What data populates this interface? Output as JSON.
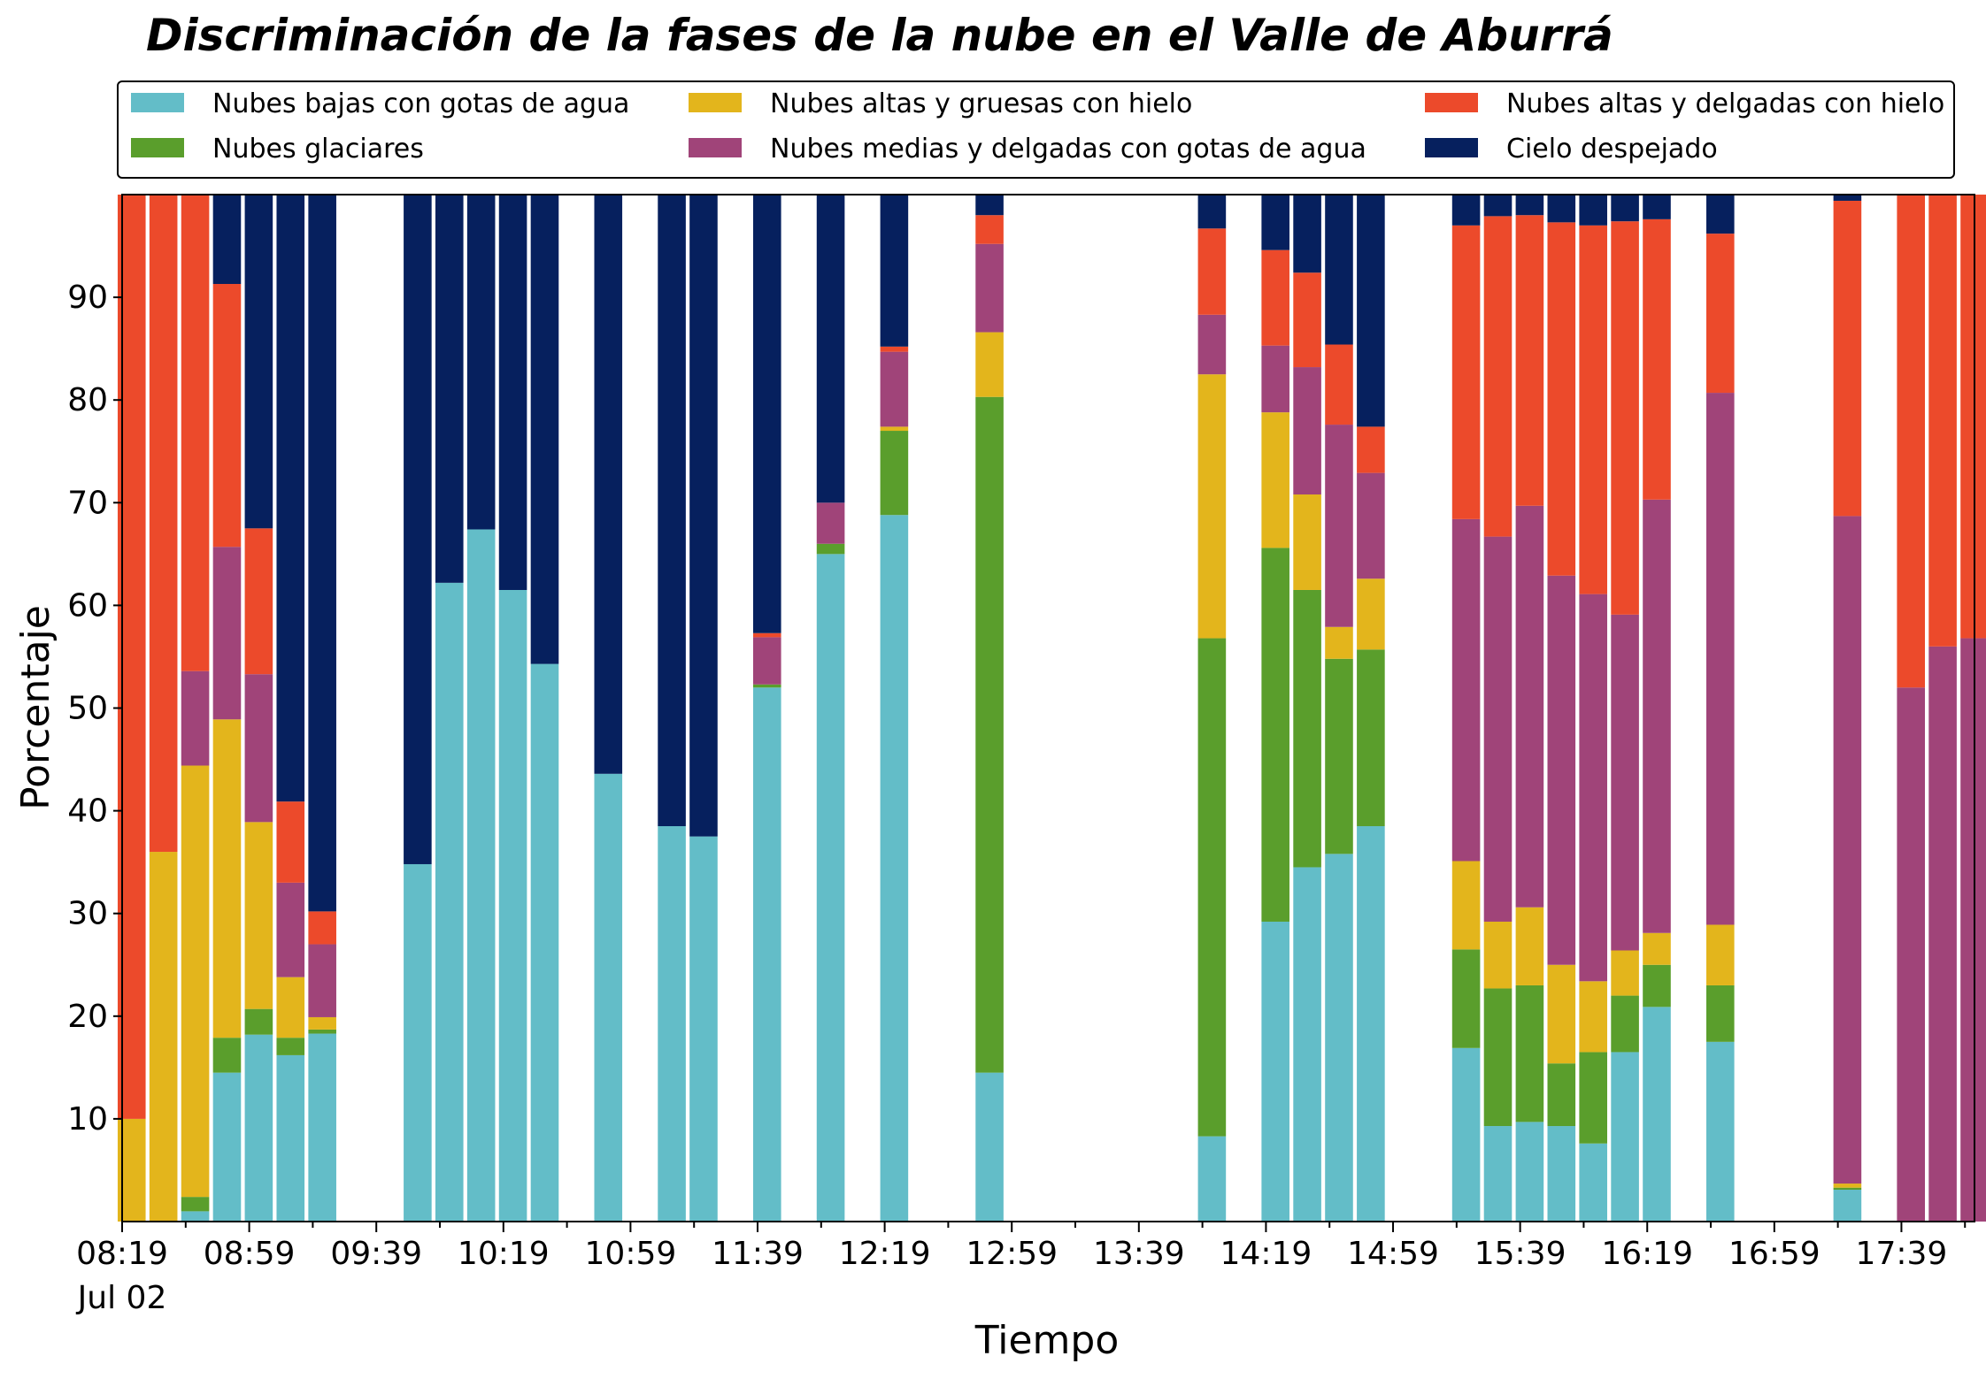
{
  "chart_data": {
    "type": "bar",
    "stacked": true,
    "title": "Discriminación de la fases de la nube en el Valle de Aburrá",
    "xlabel": "Tiempo",
    "ylabel": "Porcentaje",
    "ylim": [
      0,
      100
    ],
    "yticks": [
      10,
      20,
      30,
      40,
      50,
      60,
      70,
      80,
      90
    ],
    "x_tick_labels": [
      "08:19",
      "08:59",
      "09:39",
      "10:19",
      "10:59",
      "11:39",
      "12:19",
      "12:59",
      "13:39",
      "14:19",
      "14:59",
      "15:39",
      "16:19",
      "16:59",
      "17:39"
    ],
    "x_date_label": "Jul 02",
    "x_start": "08:19",
    "x_end": "18:02",
    "bar_interval": "00:10",
    "legend_position": "top",
    "grid": false,
    "categories": [
      "08:22",
      "08:32",
      "08:42",
      "08:52",
      "09:02",
      "09:12",
      "09:22",
      "09:32",
      "09:42",
      "09:52",
      "10:02",
      "10:12",
      "10:22",
      "10:32",
      "10:42",
      "10:52",
      "11:02",
      "11:12",
      "11:22",
      "11:32",
      "11:42",
      "11:52",
      "12:02",
      "12:12",
      "12:22",
      "12:32",
      "12:42",
      "12:52",
      "13:02",
      "13:12",
      "13:22",
      "13:32",
      "13:42",
      "13:52",
      "14:02",
      "14:12",
      "14:22",
      "14:32",
      "14:42",
      "14:52",
      "15:02",
      "15:12",
      "15:22",
      "15:32",
      "15:42",
      "15:52",
      "16:02",
      "16:12",
      "16:22",
      "16:32",
      "16:42",
      "16:52",
      "17:02",
      "17:12",
      "17:22",
      "17:32",
      "17:42",
      "17:52",
      "18:02"
    ],
    "series": [
      {
        "name": "Nubes bajas con gotas de agua",
        "color": "#63bdc8",
        "values": [
          0,
          0,
          1,
          14.5,
          18.2,
          16.2,
          18.3,
          null,
          null,
          34.8,
          62.2,
          67.4,
          61.5,
          54.3,
          null,
          43.6,
          null,
          38.5,
          37.5,
          null,
          52,
          null,
          65,
          null,
          68.8,
          null,
          null,
          14.5,
          null,
          null,
          null,
          null,
          null,
          null,
          8.3,
          null,
          29.2,
          34.5,
          35.8,
          38.5,
          null,
          null,
          16.9,
          9.3,
          9.7,
          9.3,
          7.6,
          16.5,
          20.9,
          null,
          17.5,
          null,
          null,
          null,
          3.1,
          null,
          0,
          0,
          0
        ]
      },
      {
        "name": "Nubes glaciares",
        "color": "#5a9e2c",
        "values": [
          0,
          0,
          1.4,
          3.4,
          2.5,
          1.7,
          0.4,
          null,
          null,
          0,
          0,
          0,
          0,
          0,
          null,
          0,
          null,
          0,
          0,
          null,
          0.3,
          null,
          1,
          null,
          8.2,
          null,
          null,
          65.8,
          null,
          null,
          null,
          null,
          null,
          null,
          48.5,
          null,
          36.4,
          27,
          19,
          17.2,
          null,
          null,
          9.6,
          13.4,
          13.3,
          6.1,
          8.9,
          5.5,
          4.1,
          null,
          5.5,
          null,
          null,
          null,
          0.2,
          null,
          0,
          0,
          0
        ]
      },
      {
        "name": "Nubes altas y gruesas con hielo",
        "color": "#e3b51c",
        "values": [
          10,
          36,
          42,
          31,
          18.2,
          5.9,
          1.2,
          null,
          null,
          0,
          0,
          0,
          0,
          0,
          null,
          0,
          null,
          0,
          0,
          null,
          0,
          null,
          0,
          null,
          0.4,
          null,
          null,
          6.3,
          null,
          null,
          null,
          null,
          null,
          null,
          25.7,
          null,
          13.2,
          9.3,
          3.1,
          6.9,
          null,
          null,
          8.6,
          6.5,
          7.6,
          9.6,
          6.9,
          4.4,
          3.1,
          null,
          5.9,
          null,
          null,
          null,
          0.4,
          null,
          0,
          0,
          0
        ]
      },
      {
        "name": "Nubes medias y delgadas con gotas de agua",
        "color": "#a04479",
        "values": [
          0,
          0,
          9.2,
          16.8,
          14.4,
          9.2,
          7.1,
          null,
          null,
          0,
          0,
          0,
          0,
          0,
          null,
          0,
          null,
          0,
          0,
          null,
          4.6,
          null,
          4,
          null,
          7.3,
          null,
          null,
          8.6,
          null,
          null,
          null,
          null,
          null,
          null,
          5.8,
          null,
          6.5,
          12.4,
          19.7,
          10.3,
          null,
          null,
          33.3,
          37.5,
          39.1,
          37.9,
          37.7,
          32.7,
          42.2,
          null,
          51.8,
          null,
          null,
          null,
          65,
          null,
          52,
          56,
          56.8
        ]
      },
      {
        "name": "Nubes altas y delgadas con hielo",
        "color": "#ec4a2b",
        "values": [
          90,
          64,
          46.4,
          25.6,
          14.2,
          7.9,
          3.2,
          null,
          null,
          0,
          0,
          0,
          0,
          0,
          null,
          0,
          null,
          0,
          0,
          null,
          0.4,
          null,
          0,
          null,
          0.5,
          null,
          null,
          2.8,
          null,
          null,
          null,
          null,
          null,
          null,
          8.4,
          null,
          9.3,
          9.2,
          7.8,
          4.5,
          null,
          null,
          28.6,
          31.2,
          28.3,
          34.4,
          35.9,
          38.3,
          27.3,
          null,
          15.5,
          null,
          null,
          null,
          30.7,
          null,
          48,
          44,
          43.2
        ]
      },
      {
        "name": "Cielo despejado",
        "color": "#06205e",
        "values": [
          0,
          0,
          0,
          8.7,
          32.5,
          59.1,
          69.8,
          null,
          null,
          65.2,
          37.8,
          32.6,
          38.5,
          45.7,
          null,
          56.4,
          null,
          61.5,
          62.5,
          null,
          42.7,
          null,
          30,
          null,
          14.8,
          null,
          null,
          2,
          null,
          null,
          null,
          null,
          null,
          null,
          3.3,
          null,
          5.4,
          7.6,
          14.6,
          22.6,
          null,
          null,
          3,
          2.1,
          2,
          2.7,
          3,
          2.6,
          2.4,
          null,
          3.8,
          null,
          null,
          null,
          0.6,
          null,
          0,
          0,
          0
        ]
      }
    ]
  }
}
